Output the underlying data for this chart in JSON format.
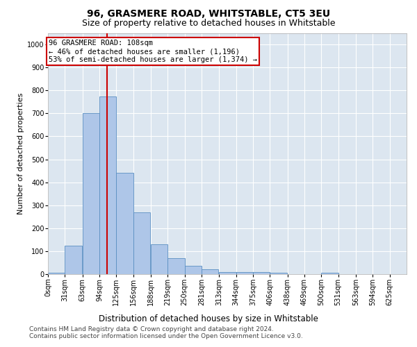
{
  "title": "96, GRASMERE ROAD, WHITSTABLE, CT5 3EU",
  "subtitle": "Size of property relative to detached houses in Whitstable",
  "xlabel": "Distribution of detached houses by size in Whitstable",
  "ylabel": "Number of detached properties",
  "bin_width": 31,
  "bin_starts": [
    0,
    31,
    63,
    94,
    125,
    156,
    188,
    219,
    250,
    281,
    313,
    344,
    375,
    406,
    438,
    469,
    500,
    531,
    563,
    594,
    625
  ],
  "bar_heights": [
    5,
    125,
    700,
    775,
    440,
    270,
    130,
    70,
    35,
    20,
    10,
    10,
    10,
    5,
    0,
    0,
    5,
    0,
    0,
    0,
    0
  ],
  "bar_color": "#aec6e8",
  "bar_edge_color": "#5a8fc2",
  "property_size": 108,
  "vline_color": "#cc0000",
  "annotation_line1": "96 GRASMERE ROAD: 108sqm",
  "annotation_line2": "← 46% of detached houses are smaller (1,196)",
  "annotation_line3": "53% of semi-detached houses are larger (1,374) →",
  "annotation_box_color": "#ffffff",
  "annotation_box_edge": "#cc0000",
  "ylim": [
    0,
    1050
  ],
  "yticks": [
    0,
    100,
    200,
    300,
    400,
    500,
    600,
    700,
    800,
    900,
    1000
  ],
  "background_color": "#dce6f0",
  "grid_color": "#ffffff",
  "footer_line1": "Contains HM Land Registry data © Crown copyright and database right 2024.",
  "footer_line2": "Contains public sector information licensed under the Open Government Licence v3.0.",
  "title_fontsize": 10,
  "subtitle_fontsize": 9,
  "xlabel_fontsize": 8.5,
  "ylabel_fontsize": 8,
  "tick_fontsize": 7,
  "annotation_fontsize": 7.5,
  "footer_fontsize": 6.5
}
